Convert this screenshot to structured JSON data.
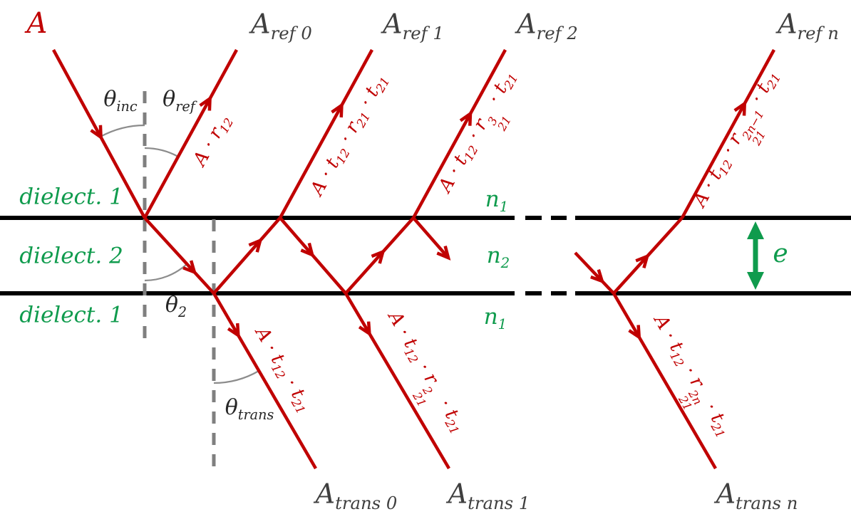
{
  "colors": {
    "ray_red": "#c00000",
    "amplitude_gray": "#3f3f3f",
    "medium_green": "#0f9b4d",
    "angle_dark": "#262626",
    "normal_gray": "#7f7f7f",
    "arc_gray": "#8c8c8c",
    "interface_black": "#000000",
    "background": "#ffffff"
  },
  "amplitudes": {
    "incident": [
      {
        "t": "A"
      }
    ],
    "reflected": [
      [
        {
          "t": "A"
        },
        {
          "sub": "ref 0"
        }
      ],
      [
        {
          "t": "A"
        },
        {
          "sub": "ref 1"
        }
      ],
      [
        {
          "t": "A"
        },
        {
          "sub": "ref 2"
        }
      ],
      [
        {
          "t": "A"
        },
        {
          "sub": "ref n"
        }
      ]
    ],
    "transmitted": [
      [
        {
          "t": "A"
        },
        {
          "sub": "trans 0"
        }
      ],
      [
        {
          "t": "A"
        },
        {
          "sub": "trans 1"
        }
      ],
      [
        {
          "t": "A"
        },
        {
          "sub": "trans n"
        }
      ]
    ]
  },
  "ray_formulas": {
    "r0": [
      {
        "t": "A · r"
      },
      {
        "sub": "12"
      }
    ],
    "r1": [
      {
        "t": "A · t"
      },
      {
        "sub": "12"
      },
      {
        "t": " · r"
      },
      {
        "sub": "21"
      },
      {
        "t": " · t"
      },
      {
        "sub": "21"
      }
    ],
    "r2": [
      {
        "t": "A · t"
      },
      {
        "sub": "12"
      },
      {
        "t": " · r"
      },
      {
        "sup": "3",
        "sub": "21"
      },
      {
        "t": " · t"
      },
      {
        "sub": "21"
      }
    ],
    "rn": [
      {
        "t": "A · t"
      },
      {
        "sub": "12"
      },
      {
        "t": " · r"
      },
      {
        "sup": "2n−1",
        "sub": "21"
      },
      {
        "t": " · t"
      },
      {
        "sub": "21"
      }
    ],
    "t0": [
      {
        "t": "A · t"
      },
      {
        "sub": "12"
      },
      {
        "t": " · t"
      },
      {
        "sub": "21"
      }
    ],
    "t1": [
      {
        "t": "A · t"
      },
      {
        "sub": "12"
      },
      {
        "t": " · r"
      },
      {
        "sup": "2",
        "sub": "21"
      },
      {
        "t": " · t"
      },
      {
        "sub": "21"
      }
    ],
    "tn": [
      {
        "t": "A · t"
      },
      {
        "sub": "12"
      },
      {
        "t": " · r"
      },
      {
        "sup": "2n",
        "sub": "21"
      },
      {
        "t": " · t"
      },
      {
        "sub": "21"
      }
    ]
  },
  "angles": {
    "inc": [
      {
        "t": "θ"
      },
      {
        "sub": "inc"
      }
    ],
    "ref": [
      {
        "t": "θ"
      },
      {
        "sub": "ref"
      }
    ],
    "two": [
      {
        "t": "θ"
      },
      {
        "sub": "2"
      }
    ],
    "trans": [
      {
        "t": "θ"
      },
      {
        "sub": "trans"
      }
    ]
  },
  "media": {
    "left": [
      "dielect. 1",
      "dielect. 2",
      "dielect. 1"
    ],
    "right": [
      [
        {
          "t": "n"
        },
        {
          "sub": "1"
        }
      ],
      [
        {
          "t": "n"
        },
        {
          "sub": "2"
        }
      ],
      [
        {
          "t": "n"
        },
        {
          "sub": "1"
        }
      ]
    ],
    "thickness": [
      {
        "t": "e"
      }
    ]
  }
}
